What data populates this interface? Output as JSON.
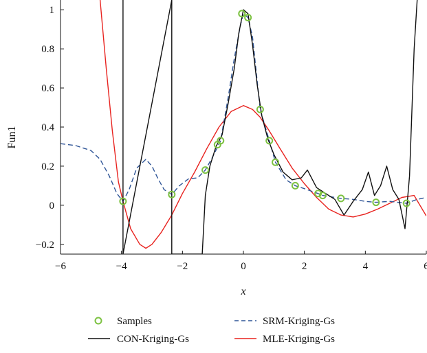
{
  "chart_data": {
    "type": "line",
    "xlabel": "x",
    "ylabel": "Fun1",
    "xlim": [
      -6,
      6
    ],
    "ylim": [
      -0.25,
      1.05
    ],
    "xticks": [
      -6,
      -4,
      -2,
      0,
      2,
      4,
      6
    ],
    "xtick_labels": [
      "−6",
      "−4",
      "−2",
      "0",
      "2",
      "4",
      "6"
    ],
    "yticks": [
      -0.2,
      0,
      0.2,
      0.4,
      0.6,
      0.8,
      1
    ],
    "ytick_labels": [
      "−0.2",
      "0",
      "0.2",
      "0.4",
      "0.6",
      "0.8",
      "1"
    ],
    "grid": false,
    "legend_position": "bottom",
    "series": [
      {
        "name": "Samples",
        "style": "marker-circle",
        "color": "#7dc242",
        "x": [
          -3.95,
          -2.35,
          -1.25,
          -0.85,
          -0.75,
          -0.05,
          0.15,
          0.55,
          0.85,
          1.05,
          1.7,
          2.45,
          2.6,
          3.2,
          4.35,
          5.35
        ],
        "y": [
          0.02,
          0.055,
          0.18,
          0.31,
          0.33,
          0.98,
          0.96,
          0.49,
          0.33,
          0.22,
          0.1,
          0.06,
          0.05,
          0.035,
          0.015,
          0.01
        ]
      },
      {
        "name": "SRM-Kriging-Gs",
        "style": "dashed",
        "color": "#2f5597",
        "x": [
          -6,
          -5.5,
          -5,
          -4.7,
          -4.4,
          -4.15,
          -3.95,
          -3.75,
          -3.5,
          -3.2,
          -3.0,
          -2.8,
          -2.6,
          -2.35,
          -2.1,
          -1.8,
          -1.5,
          -1.25,
          -1.0,
          -0.75,
          -0.5,
          -0.3,
          -0.1,
          0.0,
          0.15,
          0.3,
          0.55,
          0.85,
          1.05,
          1.4,
          1.7,
          2.0,
          2.45,
          2.6,
          3.2,
          3.6,
          4.0,
          4.35,
          4.8,
          5.35,
          5.7,
          6.0
        ],
        "y": [
          0.315,
          0.305,
          0.28,
          0.235,
          0.15,
          0.06,
          0.02,
          0.08,
          0.19,
          0.235,
          0.2,
          0.135,
          0.08,
          0.055,
          0.1,
          0.135,
          0.14,
          0.18,
          0.25,
          0.33,
          0.55,
          0.75,
          0.92,
          0.98,
          0.96,
          0.86,
          0.49,
          0.33,
          0.22,
          0.13,
          0.1,
          0.085,
          0.06,
          0.05,
          0.035,
          0.03,
          0.02,
          0.015,
          0.02,
          0.01,
          0.03,
          0.04
        ]
      },
      {
        "name": "MLE-Kriging-Gs",
        "style": "solid",
        "color": "#e8231f",
        "x": [
          -4.7,
          -4.5,
          -4.3,
          -4.1,
          -3.95,
          -3.7,
          -3.4,
          -3.2,
          -3.0,
          -2.7,
          -2.35,
          -2.0,
          -1.6,
          -1.2,
          -0.8,
          -0.4,
          0.0,
          0.3,
          0.55,
          0.85,
          1.2,
          1.6,
          2.0,
          2.4,
          2.8,
          3.2,
          3.6,
          4.0,
          4.4,
          4.8,
          5.2,
          5.6,
          6.0
        ],
        "y": [
          1.05,
          0.7,
          0.38,
          0.12,
          0.02,
          -0.12,
          -0.2,
          -0.22,
          -0.2,
          -0.14,
          -0.05,
          0.06,
          0.17,
          0.29,
          0.4,
          0.48,
          0.51,
          0.49,
          0.45,
          0.38,
          0.29,
          0.19,
          0.11,
          0.04,
          -0.02,
          -0.05,
          -0.06,
          -0.045,
          -0.02,
          0.01,
          0.04,
          0.05,
          -0.055
        ]
      },
      {
        "name": "CON-Kriging-Gs",
        "style": "solid",
        "color": "#111111",
        "x": [
          -3.95,
          -3.95,
          -2.35,
          -2.35,
          -1.35,
          -1.25,
          -1.1,
          -0.9,
          -0.7,
          -0.5,
          -0.3,
          -0.15,
          0.0,
          0.15,
          0.3,
          0.45,
          0.6,
          0.8,
          1.0,
          1.3,
          1.6,
          1.9,
          2.1,
          2.4,
          2.7,
          3.0,
          3.3,
          3.6,
          3.9,
          4.1,
          4.3,
          4.5,
          4.7,
          4.9,
          5.1,
          5.3,
          5.45,
          5.6,
          5.7
        ],
        "y": [
          1.05,
          -0.25,
          1.05,
          -0.25,
          -0.25,
          0.05,
          0.2,
          0.3,
          0.36,
          0.52,
          0.7,
          0.88,
          1.0,
          0.98,
          0.82,
          0.62,
          0.46,
          0.34,
          0.26,
          0.17,
          0.13,
          0.14,
          0.18,
          0.09,
          0.06,
          0.03,
          -0.05,
          0.02,
          0.08,
          0.17,
          0.05,
          0.1,
          0.2,
          0.08,
          0.03,
          -0.12,
          0.15,
          0.8,
          1.05
        ]
      }
    ]
  },
  "legend": {
    "samples_label": "Samples",
    "con_label": "CON-Kriging-Gs",
    "srm_label": "SRM-Kriging-Gs",
    "mle_label": "MLE-Kriging-Gs"
  },
  "axes": {
    "xlabel": "x",
    "ylabel": "Fun1"
  }
}
